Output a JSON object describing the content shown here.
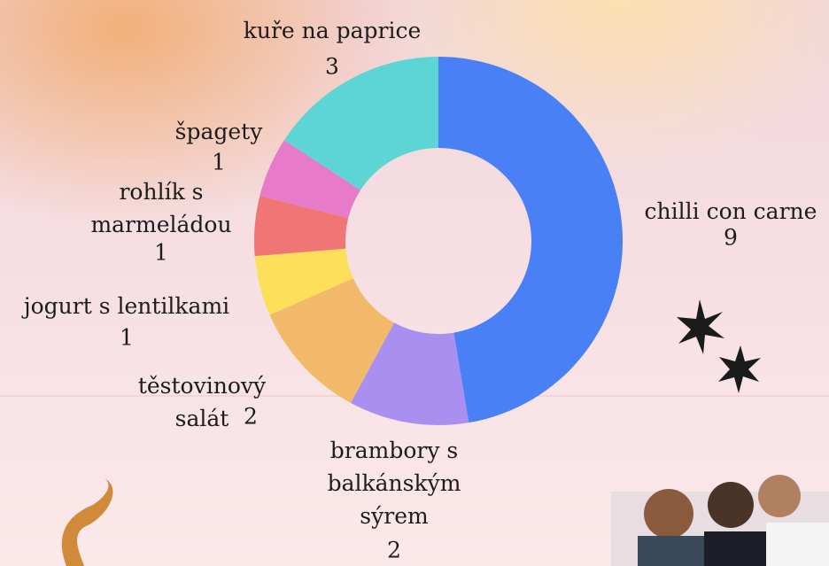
{
  "chart_data": {
    "type": "donut",
    "categories": [
      "chilli con carne",
      "brambory s balkánským sýrem",
      "těstovinový salát",
      "jogurt s lentilkami",
      "rohlík s marmeládou",
      "špagety",
      "kuře na paprice"
    ],
    "values": [
      9,
      2,
      2,
      1,
      1,
      1,
      3
    ],
    "colors": [
      "#4a80f6",
      "#a98ff0",
      "#f2b96b",
      "#fddf5a",
      "#f07575",
      "#e87bc9",
      "#5dd5d5"
    ]
  }
}
